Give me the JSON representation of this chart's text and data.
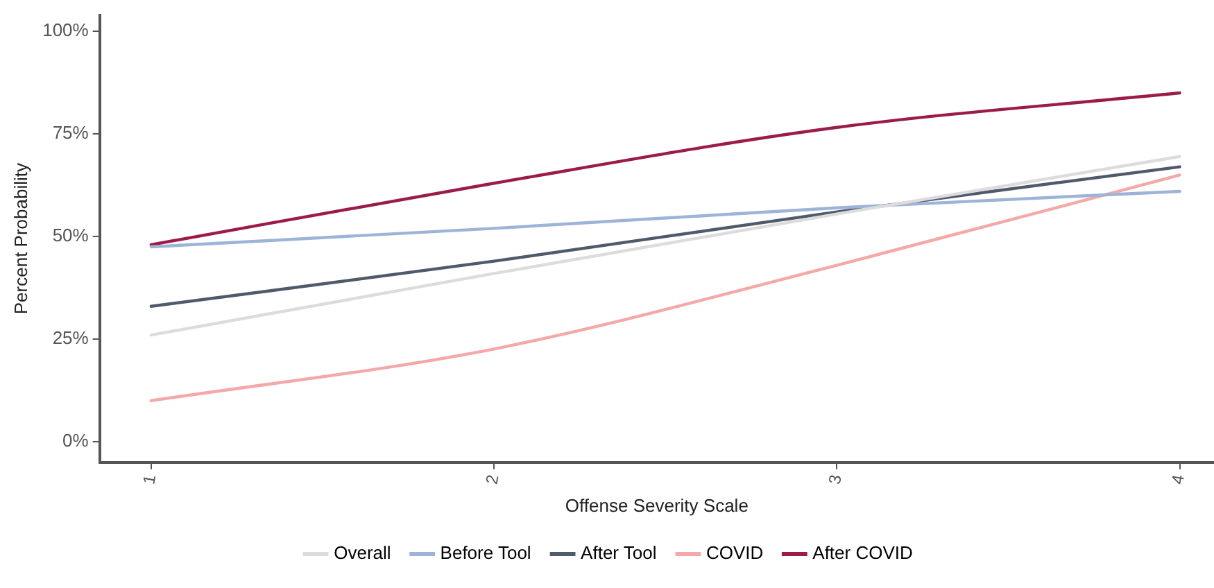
{
  "chart_data": {
    "type": "line",
    "xlabel": "Offense Severity Scale",
    "ylabel": "Percent Probability",
    "x": [
      1,
      2,
      3,
      4
    ],
    "xlim": [
      0.85,
      4.1
    ],
    "xticks": [
      1,
      2,
      3,
      4
    ],
    "ylim": [
      -5,
      104
    ],
    "yticks": [
      {
        "value": 0,
        "label": "0%"
      },
      {
        "value": 25,
        "label": "25%"
      },
      {
        "value": 50,
        "label": "50%"
      },
      {
        "value": 75,
        "label": "75%"
      },
      {
        "value": 100,
        "label": "100%"
      }
    ],
    "grid": false,
    "legend": "bottom",
    "marker": "none",
    "line_style": "solid",
    "series": [
      {
        "name": "Overall",
        "color": "#dcdcdc",
        "values": [
          26,
          41,
          55.5,
          69.5
        ]
      },
      {
        "name": "Before Tool",
        "color": "#9db4d8",
        "values": [
          47.5,
          52,
          57,
          61
        ]
      },
      {
        "name": "After Tool",
        "color": "#4f5a6b",
        "values": [
          33,
          44,
          56,
          67
        ]
      },
      {
        "name": "COVID",
        "color": "#f4a9a8",
        "values": [
          10,
          22.6,
          43,
          65
        ]
      },
      {
        "name": "After COVID",
        "color": "#9b1c4a",
        "values": [
          48,
          63,
          76.6,
          85
        ]
      }
    ]
  }
}
